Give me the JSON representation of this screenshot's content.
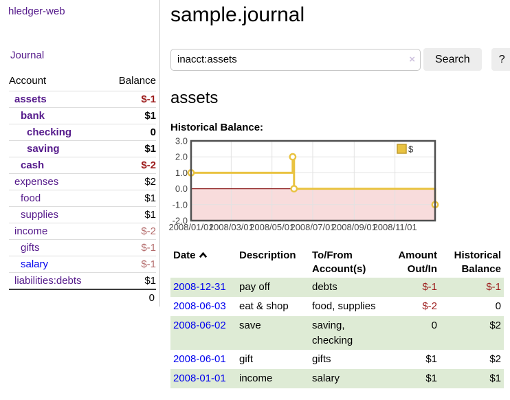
{
  "colors": {
    "link_purple": "#551a8b",
    "link_blue": "#0000ee",
    "negative_strong": "#9c1b1b",
    "negative_soft": "#b36a6a",
    "row_stripe_green": "#deebd5",
    "divider_gray": "#cccccc",
    "row_border_gray": "#dddddd",
    "button_bg": "#ededed",
    "input_border": "#c6c6c6",
    "clear_icon_lavender": "#cfc3df"
  },
  "sidebar": {
    "brand": "hledger-web",
    "journal_link": "Journal",
    "accounts_table": {
      "headers": [
        "Account",
        "Balance"
      ],
      "rows": [
        {
          "name": "assets",
          "balance": "$-1",
          "indent": 0,
          "bold": true,
          "balance_tone": "strong-negative",
          "link_tone": "purple"
        },
        {
          "name": "bank",
          "balance": "$1",
          "indent": 1,
          "bold": true,
          "balance_tone": "normal",
          "link_tone": "purple"
        },
        {
          "name": "checking",
          "balance": "0",
          "indent": 2,
          "bold": true,
          "balance_tone": "normal",
          "link_tone": "purple"
        },
        {
          "name": "saving",
          "balance": "$1",
          "indent": 2,
          "bold": true,
          "balance_tone": "normal",
          "link_tone": "purple"
        },
        {
          "name": "cash",
          "balance": "$-2",
          "indent": 1,
          "bold": true,
          "balance_tone": "strong-negative",
          "link_tone": "purple"
        },
        {
          "name": "expenses",
          "balance": "$2",
          "indent": 0,
          "bold": false,
          "balance_tone": "normal",
          "link_tone": "purple"
        },
        {
          "name": "food",
          "balance": "$1",
          "indent": 1,
          "bold": false,
          "balance_tone": "normal",
          "link_tone": "purple"
        },
        {
          "name": "supplies",
          "balance": "$1",
          "indent": 1,
          "bold": false,
          "balance_tone": "normal",
          "link_tone": "purple"
        },
        {
          "name": "income",
          "balance": "$-2",
          "indent": 0,
          "bold": false,
          "balance_tone": "soft-negative",
          "link_tone": "purple"
        },
        {
          "name": "gifts",
          "balance": "$-1",
          "indent": 1,
          "bold": false,
          "balance_tone": "soft-negative",
          "link_tone": "purple"
        },
        {
          "name": "salary",
          "balance": "$-1",
          "indent": 1,
          "bold": false,
          "balance_tone": "soft-negative",
          "link_tone": "blue"
        },
        {
          "name": "liabilities:debts",
          "balance": "$1",
          "indent": 0,
          "bold": false,
          "balance_tone": "normal",
          "link_tone": "purple"
        }
      ],
      "total": "0"
    }
  },
  "main": {
    "title": "sample.journal",
    "search": {
      "value": "inacct:assets",
      "clear_icon": "×",
      "search_button": "Search",
      "help_button": "?"
    },
    "account_heading": "assets",
    "chart_label": "Historical Balance:"
  },
  "chart_data": {
    "type": "line",
    "step": true,
    "title": "Historical Balance",
    "series": [
      {
        "name": "$",
        "color": "#e9c341",
        "points": [
          [
            "2008-01-01",
            1.0
          ],
          [
            "2008-06-01",
            2.0
          ],
          [
            "2008-06-03",
            0.0
          ],
          [
            "2008-12-31",
            -1.0
          ]
        ]
      }
    ],
    "x_range": [
      "2008-01-01",
      "2008-12-31"
    ],
    "ylim": [
      -2.0,
      3.0
    ],
    "y_ticks": [
      3.0,
      2.0,
      1.0,
      0.0,
      -1.0,
      -2.0
    ],
    "x_ticks": [
      "2008/01/01",
      "2008/03/01",
      "2008/05/01",
      "2008/07/01",
      "2008/09/01",
      "2008/11/01"
    ],
    "legend": {
      "label": "$",
      "position": "top-right"
    },
    "grid": true,
    "negative_region_fill": "#f8dcdc",
    "zero_line_color": "#8b1a1a"
  },
  "transactions_table": {
    "headers": [
      "Date",
      "Description",
      "To/From\nAccount(s)",
      "Amount\nOut/In",
      "Historical\nBalance"
    ],
    "rows": [
      {
        "date": "2008-12-31",
        "description": "pay off",
        "accounts": "debts",
        "amount": "$-1",
        "balance": "$-1"
      },
      {
        "date": "2008-06-03",
        "description": "eat & shop",
        "accounts": "food, supplies",
        "amount": "$-2",
        "balance": "0"
      },
      {
        "date": "2008-06-02",
        "description": "save",
        "accounts": "saving,\nchecking",
        "amount": "0",
        "balance": "$2"
      },
      {
        "date": "2008-06-01",
        "description": "gift",
        "accounts": "gifts",
        "amount": "$1",
        "balance": "$2"
      },
      {
        "date": "2008-01-01",
        "description": "income",
        "accounts": "salary",
        "amount": "$1",
        "balance": "$1"
      }
    ]
  }
}
